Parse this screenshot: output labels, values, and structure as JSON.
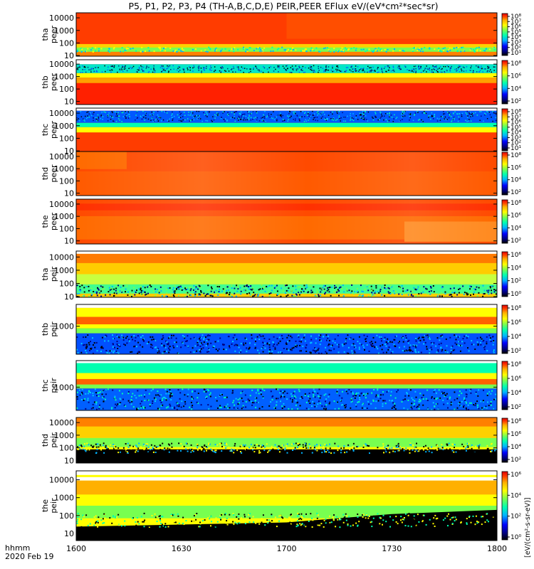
{
  "chart_data": {
    "type": "heatmap",
    "title": "P5, P1, P2, P3, P4 (TH-A,B,C,D,E) PEIR,PEER EFlux eV/(eV*cm²*sec*sr)",
    "colorbar_unit": "[eV/(cm²-s-sr-eV)]",
    "x_time_label": "hhmm",
    "x_date_label": "2020 Feb 19",
    "x_ticks": [
      "1600",
      "1630",
      "1700",
      "1730",
      "1800"
    ],
    "x_range": [
      "1600",
      "1800"
    ],
    "y_scale": "log",
    "colormap": [
      "#000000",
      "#000080",
      "#0000ff",
      "#00b4ff",
      "#00ffb0",
      "#78ff50",
      "#ffff00",
      "#ffb000",
      "#ff3c00",
      "#e00000"
    ],
    "panels": [
      {
        "name": "tha-peer",
        "ylabel": [
          "tha",
          "peer"
        ],
        "yticks": [
          "10",
          "100",
          "1000",
          "10000"
        ],
        "cbar_ticks": [
          "10⁸",
          "10⁷",
          "10⁶",
          "10⁵",
          "10⁴",
          "10³",
          "10²",
          "10¹"
        ],
        "dominant_color": "#ff3c00"
      },
      {
        "name": "thb-peer",
        "ylabel": [
          "thb",
          "peer"
        ],
        "yticks": [
          "10",
          "100",
          "1000",
          "10000"
        ],
        "cbar_ticks": [
          "10⁸",
          "10⁶",
          "10⁴",
          "10²"
        ],
        "dominant_color": "#ff2000"
      },
      {
        "name": "thc-peer",
        "ylabel": [
          "thc",
          "peer"
        ],
        "yticks": [
          "10",
          "100",
          "1000",
          "10000"
        ],
        "cbar_ticks": [
          "10⁸",
          "10⁷",
          "10⁶",
          "10⁵",
          "10⁴",
          "10³",
          "10²",
          "10¹"
        ],
        "dominant_color": "#ff3c00"
      },
      {
        "name": "thd-peer",
        "ylabel": [
          "thd",
          "peer"
        ],
        "yticks": [
          "10",
          "100",
          "1000",
          "10000"
        ],
        "cbar_ticks": [
          "10⁸",
          "10⁶",
          "10⁴",
          "10²"
        ],
        "dominant_color": "#ff4a00"
      },
      {
        "name": "the-peer",
        "ylabel": [
          "the",
          "peer"
        ],
        "yticks": [
          "10",
          "100",
          "1000",
          "10000"
        ],
        "cbar_ticks": [
          "10⁸",
          "10⁶",
          "10⁴",
          "10²"
        ],
        "dominant_color": "#ff4a00"
      },
      {
        "name": "tha-peir",
        "ylabel": [
          "tha",
          "peir"
        ],
        "yticks": [
          "10",
          "100",
          "1000",
          "10000"
        ],
        "cbar_ticks": [
          "10⁶",
          "10⁴",
          "10²",
          "10⁰"
        ],
        "dominant_color": "#ffcc00"
      },
      {
        "name": "thb-peir",
        "ylabel": [
          "thb",
          "peir"
        ],
        "yticks": [
          "1000"
        ],
        "cbar_ticks": [
          "10⁸",
          "10⁶",
          "10⁴",
          "10²"
        ],
        "dominant_color": "#ff6000"
      },
      {
        "name": "thc-peir",
        "ylabel": [
          "thc",
          "peir"
        ],
        "yticks": [
          "1000"
        ],
        "cbar_ticks": [
          "10⁸",
          "10⁶",
          "10⁴",
          "10²"
        ],
        "dominant_color": "#ff6000"
      },
      {
        "name": "thd-peir",
        "ylabel": [
          "thd",
          "peir"
        ],
        "yticks": [
          "10",
          "100",
          "1000",
          "10000"
        ],
        "cbar_ticks": [
          "10⁸",
          "10⁶",
          "10⁴",
          "10²"
        ],
        "dominant_color": "#ffff00"
      },
      {
        "name": "the-peir",
        "ylabel": [
          "the",
          "peir"
        ],
        "yticks": [
          "10",
          "100",
          "1000",
          "10000"
        ],
        "cbar_ticks": [
          "10⁶",
          "10⁴",
          "10²",
          "10⁰"
        ],
        "dominant_color": "#ffff00"
      }
    ]
  }
}
